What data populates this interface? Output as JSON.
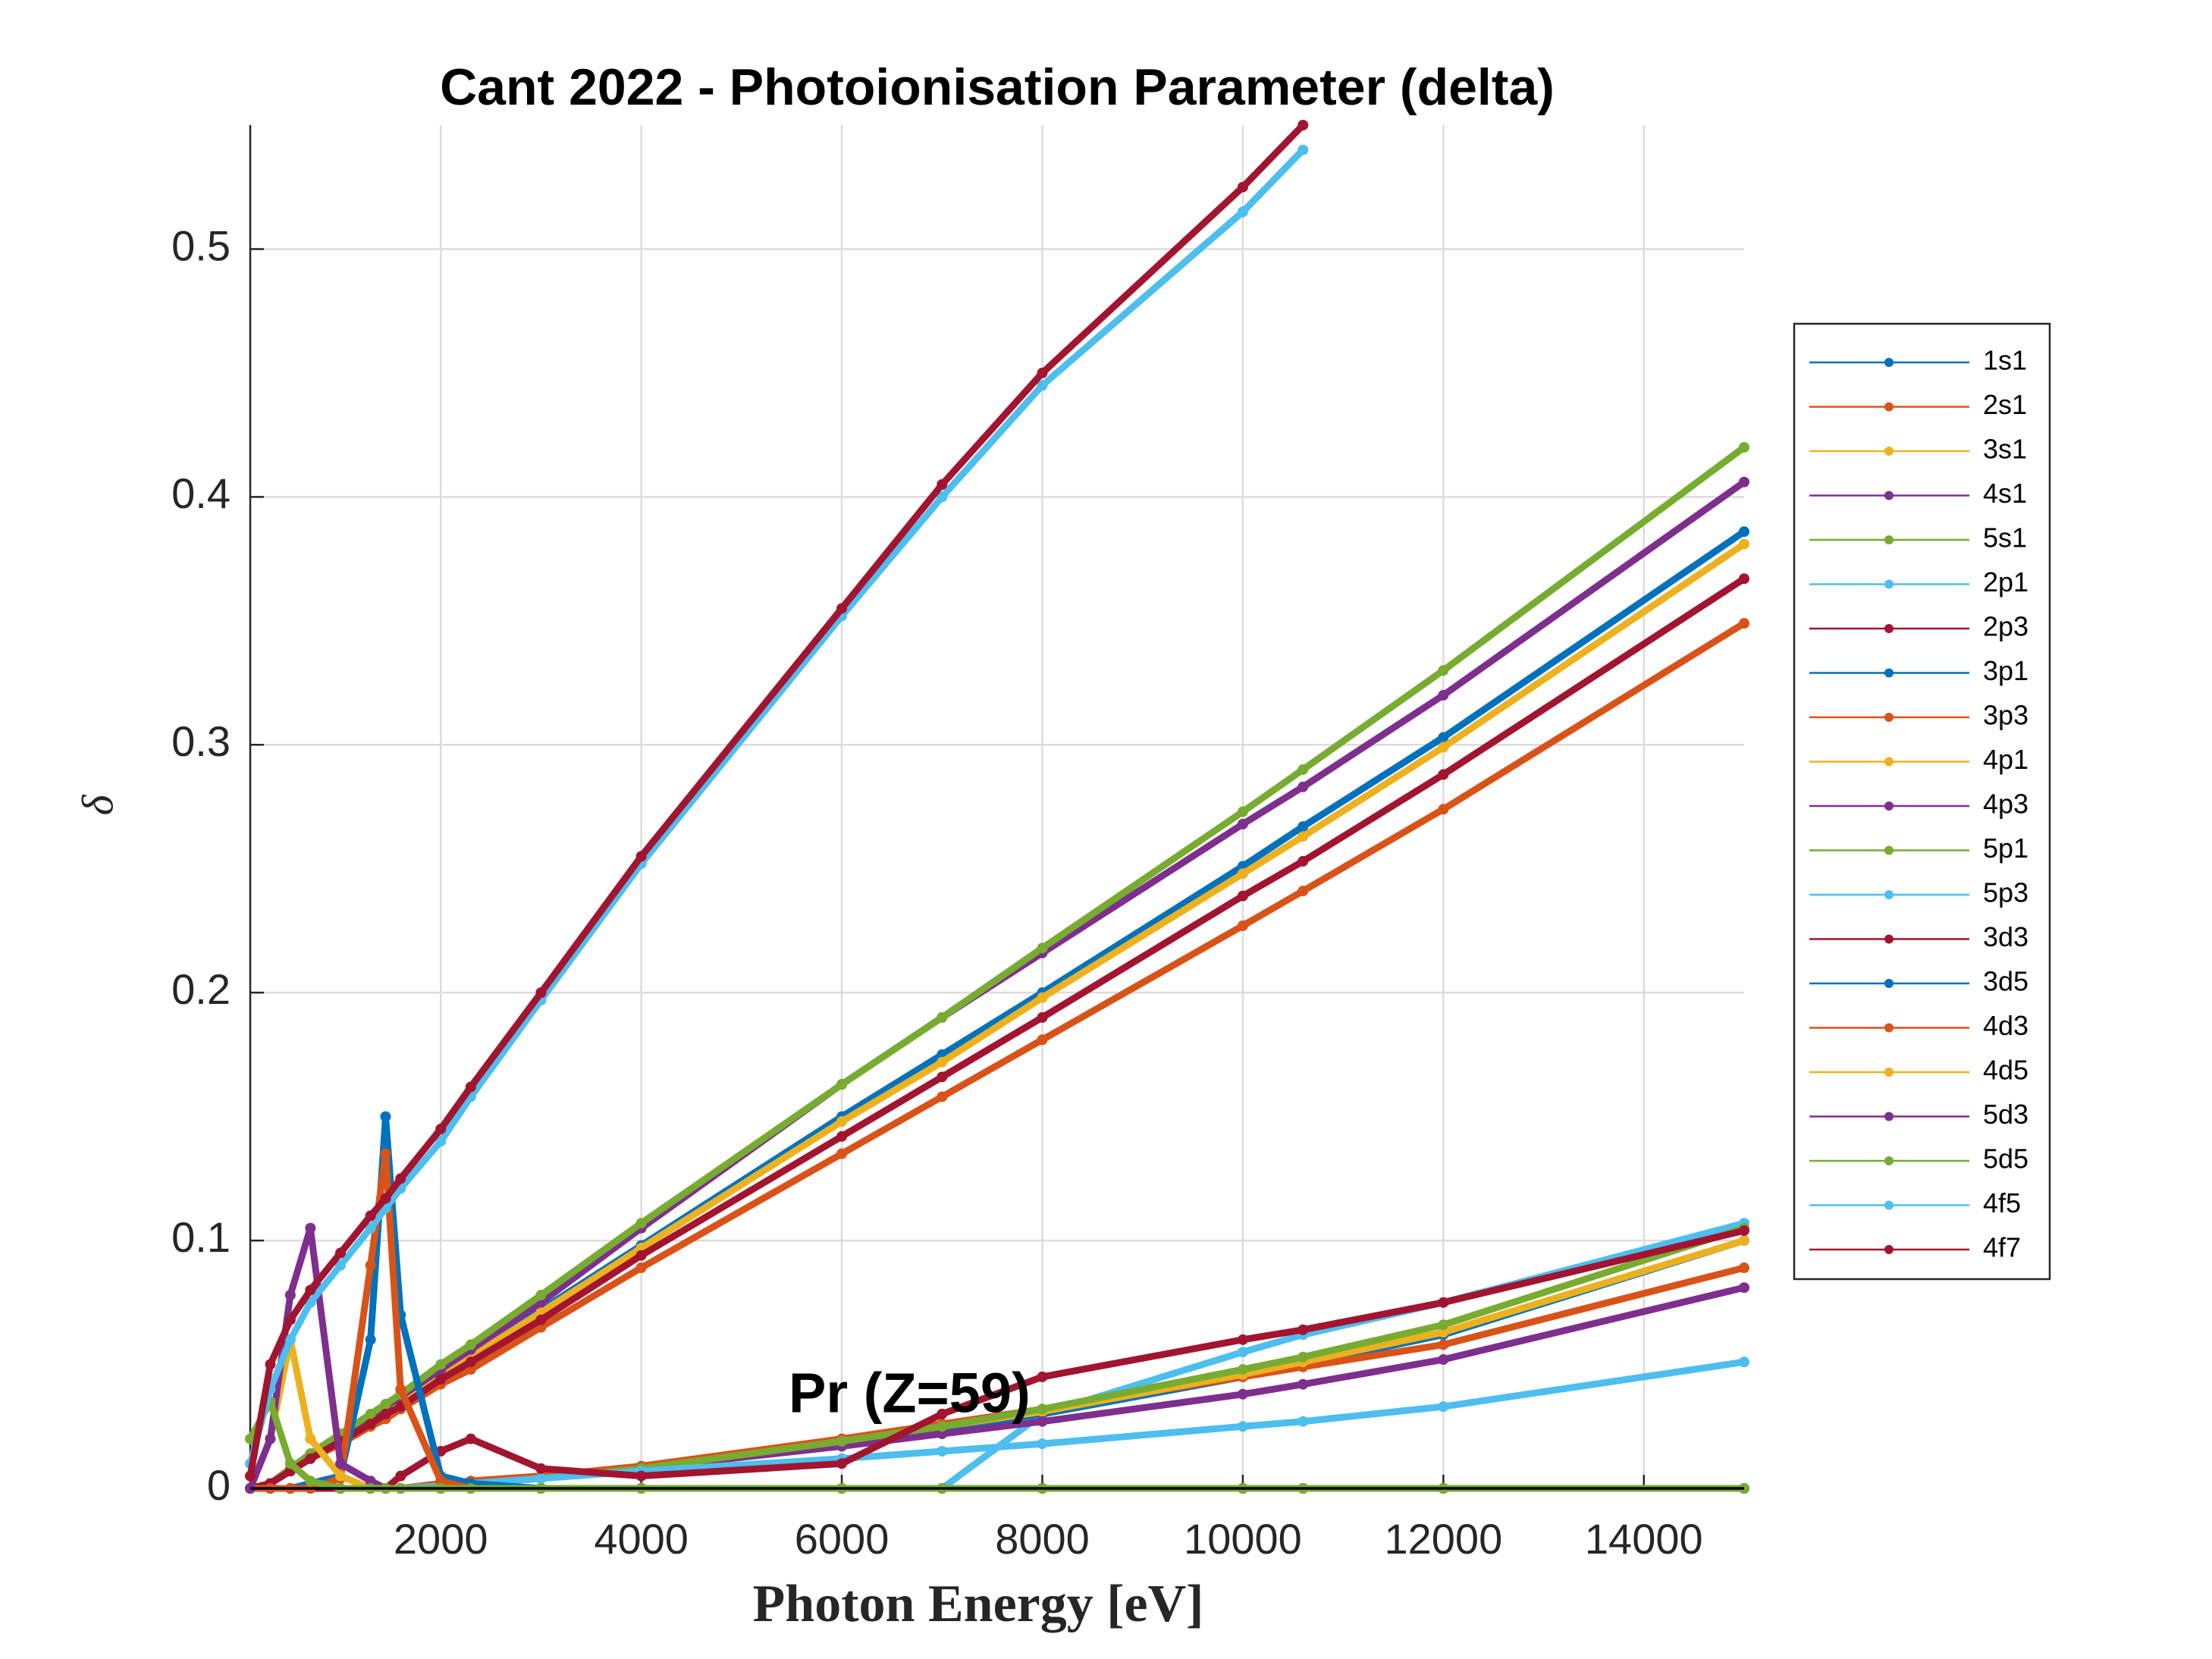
{
  "chart_data": {
    "type": "line",
    "title": "Cant 2022 - Photoionisation Parameter (delta)",
    "xlabel": "Photon Energy [eV]",
    "ylabel": "δ",
    "annotation": "Pr (Z=59)",
    "x": [
      100,
      300,
      500,
      700,
      1000,
      1300,
      1450,
      1600,
      2000,
      2300,
      3000,
      4000,
      6000,
      7000,
      8000,
      10000,
      10600,
      12000,
      15000
    ],
    "xlim": [
      100,
      15000
    ],
    "ylim": [
      0,
      0.55
    ],
    "xticks": [
      2000,
      4000,
      6000,
      8000,
      10000,
      12000,
      14000
    ],
    "yticks": [
      0,
      0.1,
      0.2,
      0.3,
      0.4,
      0.5
    ],
    "grid": true,
    "legend": "right",
    "series": [
      {
        "name": "1s1",
        "color": "#0072BD",
        "values": [
          0,
          0.002,
          0.007,
          0.013,
          0.02,
          0.028,
          0.031,
          0.035,
          0.046,
          0.053,
          0.072,
          0.098,
          0.15,
          0.175,
          0.2,
          0.251,
          0.267,
          0.303,
          0.386
        ]
      },
      {
        "name": "2s1",
        "color": "#D95319",
        "values": [
          0,
          0.002,
          0.007,
          0.012,
          0.018,
          0.025,
          0.028,
          0.032,
          0.042,
          0.048,
          0.065,
          0.089,
          0.135,
          0.158,
          0.181,
          0.227,
          0.241,
          0.274,
          0.349
        ]
      },
      {
        "name": "3s1",
        "color": "#EDB120",
        "values": [
          0,
          0.002,
          0.007,
          0.013,
          0.02,
          0.027,
          0.031,
          0.034,
          0.045,
          0.053,
          0.071,
          0.097,
          0.148,
          0.172,
          0.198,
          0.248,
          0.263,
          0.299,
          0.381
        ]
      },
      {
        "name": "4s1",
        "color": "#7E2F8E",
        "values": [
          0,
          0.002,
          0.008,
          0.014,
          0.021,
          0.029,
          0.033,
          0.037,
          0.048,
          0.056,
          0.075,
          0.105,
          0.163,
          0.19,
          0.216,
          0.268,
          0.283,
          0.32,
          0.406
        ]
      },
      {
        "name": "5s1",
        "color": "#77AC30",
        "values": [
          0,
          0.002,
          0.008,
          0.014,
          0.022,
          0.03,
          0.034,
          0.038,
          0.05,
          0.058,
          0.078,
          0.107,
          0.163,
          0.19,
          0.218,
          0.273,
          0.29,
          0.33,
          0.42
        ]
      },
      {
        "name": "2p1",
        "color": "#4DBEEE",
        "values": [
          null,
          null,
          null,
          null,
          null,
          null,
          null,
          null,
          null,
          null,
          null,
          null,
          null,
          0,
          0.03,
          0.055,
          0.062,
          0.075,
          0.107
        ]
      },
      {
        "name": "2p3",
        "color": "#A2142F",
        "values": [
          0,
          0.002,
          0.007,
          0.012,
          0.019,
          0.026,
          0.03,
          0.033,
          0.044,
          0.051,
          0.068,
          0.094,
          0.142,
          0.166,
          0.19,
          0.239,
          0.253,
          0.288,
          0.367
        ]
      },
      {
        "name": "3p1",
        "color": "#0072BD",
        "values": [
          0,
          0,
          0,
          0,
          0,
          0,
          0,
          0,
          0.001,
          0.002,
          0.004,
          0.008,
          0.018,
          0.024,
          0.03,
          0.045,
          0.05,
          0.062,
          0.1
        ]
      },
      {
        "name": "3p3",
        "color": "#D95319",
        "values": [
          0,
          0,
          0,
          0,
          0,
          0,
          0,
          0,
          0.002,
          0.003,
          0.005,
          0.009,
          0.02,
          0.026,
          0.032,
          0.045,
          0.049,
          0.058,
          0.089
        ]
      },
      {
        "name": "4p1",
        "color": "#EDB120",
        "values": [
          0,
          0,
          0,
          0,
          0,
          0,
          0,
          0,
          0.001,
          0.002,
          0.004,
          0.008,
          0.019,
          0.025,
          0.031,
          0.046,
          0.051,
          0.063,
          0.1
        ]
      },
      {
        "name": "4p3",
        "color": "#7E2F8E",
        "values": [
          0,
          0,
          0,
          0,
          0,
          0,
          0,
          0,
          0.001,
          0.002,
          0.004,
          0.008,
          0.017,
          0.022,
          0.027,
          0.038,
          0.042,
          0.052,
          0.081
        ]
      },
      {
        "name": "5p1",
        "color": "#77AC30",
        "values": [
          0,
          0,
          0,
          0,
          0,
          0,
          0,
          0,
          0.001,
          0.002,
          0.004,
          0.008,
          0.019,
          0.025,
          0.032,
          0.048,
          0.053,
          0.066,
          0.105
        ]
      },
      {
        "name": "5p3",
        "color": "#4DBEEE",
        "values": [
          0,
          0,
          0,
          0,
          0,
          0,
          0,
          0,
          0.001,
          0.002,
          0.004,
          0.007,
          0.012,
          0.015,
          0.018,
          0.025,
          0.027,
          0.033,
          0.051
        ]
      },
      {
        "name": "3d3",
        "color": "#A2142F",
        "values": [
          0,
          0,
          0,
          0,
          0,
          0,
          0,
          0.005,
          0.015,
          0.02,
          0.008,
          0.005,
          0.01,
          0.03,
          0.045,
          0.06,
          0.064,
          0.075,
          0.104
        ]
      },
      {
        "name": "3d5",
        "color": "#0072BD",
        "values": [
          0,
          0,
          0,
          0.002,
          0.005,
          0.06,
          0.15,
          0.07,
          0.005,
          0.002,
          0,
          0,
          0,
          0,
          0,
          0,
          0,
          0,
          0
        ]
      },
      {
        "name": "4d3",
        "color": "#D95319",
        "values": [
          0,
          0,
          0,
          0,
          0.004,
          0.09,
          0.135,
          0.04,
          0.003,
          0,
          0,
          0,
          0,
          0,
          0,
          0,
          0,
          0,
          0
        ]
      },
      {
        "name": "4d5",
        "color": "#EDB120",
        "values": [
          0,
          0.02,
          0.06,
          0.02,
          0.005,
          0,
          0,
          0,
          0,
          0,
          0,
          0,
          0,
          0,
          0,
          0,
          0,
          0,
          0
        ]
      },
      {
        "name": "5d3",
        "color": "#7E2F8E",
        "values": [
          0,
          0.02,
          0.078,
          0.105,
          0.01,
          0.003,
          0,
          0,
          0,
          0,
          0,
          0,
          0,
          0,
          0,
          0,
          0,
          0,
          0
        ]
      },
      {
        "name": "5d5",
        "color": "#77AC30",
        "values": [
          0.02,
          0.035,
          0.01,
          0.003,
          0,
          0,
          0,
          0,
          0,
          0,
          0,
          0,
          0,
          0,
          0,
          0,
          0,
          0,
          0
        ]
      },
      {
        "name": "4f5",
        "color": "#4DBEEE",
        "values": [
          0.01,
          0.04,
          0.06,
          0.075,
          0.09,
          0.105,
          0.113,
          0.121,
          0.14,
          0.158,
          0.197,
          0.252,
          0.352,
          0.4,
          0.445,
          0.515,
          0.54,
          null,
          null
        ]
      },
      {
        "name": "4f7",
        "color": "#A2142F",
        "values": [
          0.005,
          0.05,
          0.068,
          0.08,
          0.095,
          0.11,
          0.117,
          0.125,
          0.145,
          0.162,
          0.2,
          0.255,
          0.355,
          0.405,
          0.45,
          0.525,
          0.55,
          null,
          null
        ]
      }
    ]
  }
}
